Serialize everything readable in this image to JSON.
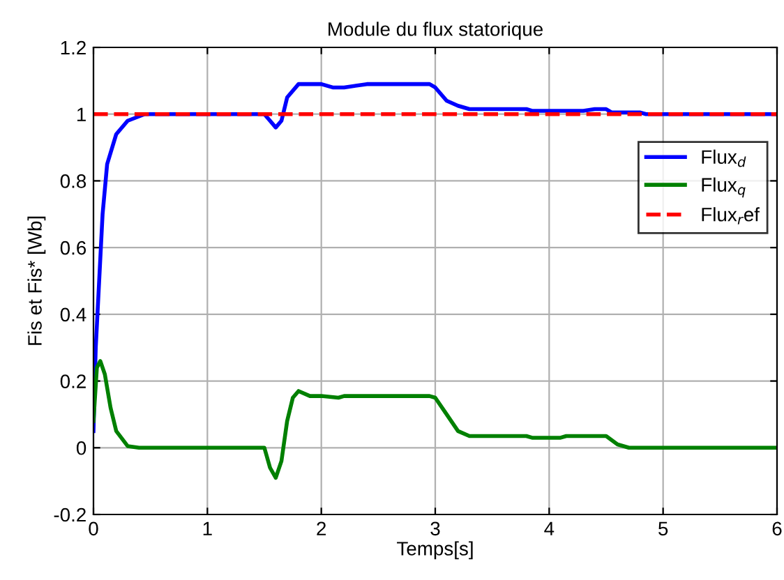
{
  "chart_data": {
    "type": "line",
    "title": "Module du flux statorique",
    "xlabel": "Temps[s]",
    "ylabel": "Fis et Fis* [Wb]",
    "xlim": [
      0,
      6
    ],
    "xticks": [
      0,
      1,
      2,
      3,
      4,
      5,
      6
    ],
    "ylim": [
      -0.2,
      1.2
    ],
    "yticks": [
      -0.2,
      0,
      0.2,
      0.4,
      0.6,
      0.8,
      1,
      1.2
    ],
    "grid": true,
    "legend": "right",
    "series": [
      {
        "name": "Flux$_{d}$",
        "color": "#0000ff",
        "line_style": "solid",
        "x": [
          0,
          0.02,
          0.05,
          0.08,
          0.12,
          0.2,
          0.3,
          0.45,
          1.5,
          1.55,
          1.6,
          1.65,
          1.7,
          1.8,
          2.0,
          2.1,
          2.2,
          2.4,
          2.95,
          3.0,
          3.1,
          3.2,
          3.3,
          3.8,
          3.85,
          4.3,
          4.4,
          4.5,
          4.55,
          4.8,
          4.85,
          6
        ],
        "values": [
          0.05,
          0.3,
          0.5,
          0.7,
          0.85,
          0.94,
          0.98,
          1.0,
          1.0,
          0.98,
          0.96,
          0.98,
          1.05,
          1.09,
          1.09,
          1.08,
          1.08,
          1.09,
          1.09,
          1.08,
          1.04,
          1.025,
          1.015,
          1.015,
          1.01,
          1.01,
          1.015,
          1.015,
          1.005,
          1.005,
          1.0,
          1.0
        ]
      },
      {
        "name": "Flux$_{q}$",
        "color": "#008000",
        "line_style": "solid",
        "x": [
          0,
          0.03,
          0.06,
          0.1,
          0.15,
          0.2,
          0.3,
          0.4,
          1.5,
          1.55,
          1.6,
          1.65,
          1.7,
          1.75,
          1.8,
          1.9,
          2.0,
          2.15,
          2.2,
          2.95,
          3.0,
          3.1,
          3.2,
          3.3,
          3.8,
          3.85,
          4.1,
          4.15,
          4.5,
          4.6,
          4.7,
          6
        ],
        "values": [
          0.08,
          0.24,
          0.26,
          0.22,
          0.12,
          0.05,
          0.005,
          0.0,
          0.0,
          -0.06,
          -0.09,
          -0.04,
          0.08,
          0.15,
          0.17,
          0.155,
          0.155,
          0.15,
          0.155,
          0.155,
          0.15,
          0.1,
          0.05,
          0.035,
          0.035,
          0.03,
          0.03,
          0.035,
          0.035,
          0.01,
          0.0,
          0.0
        ]
      },
      {
        "name": "Flux$_{r}$ef",
        "color": "#ff0000",
        "line_style": "dashed",
        "x": [
          0,
          6
        ],
        "values": [
          1,
          1
        ]
      }
    ]
  }
}
